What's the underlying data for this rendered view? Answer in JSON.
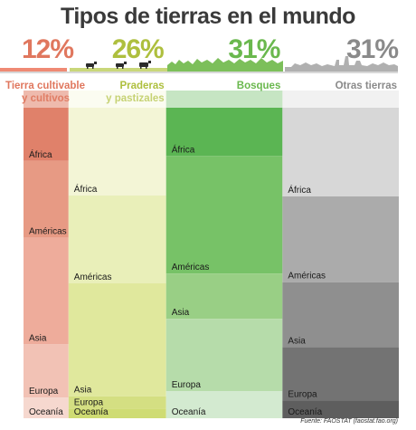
{
  "chart_data": {
    "type": "stacked-bar",
    "title": "Tipos de tierras en el mundo",
    "source": "Fuente: FAOSTAT (faostat.fao.org)",
    "columns": [
      {
        "name": "Tierra cultivable y cultivos",
        "name_lines": [
          "Tierra cultivable",
          "y cultivos"
        ],
        "share_label": "12%",
        "share": 12,
        "label_color": "#e0775e",
        "segments": [
          {
            "region": "África",
            "value": 18,
            "color": "#e0816a"
          },
          {
            "region": "Américas",
            "value": 26,
            "color": "#e79a84"
          },
          {
            "region": "Asia",
            "value": 36,
            "color": "#eeac9b"
          },
          {
            "region": "Europa",
            "value": 18,
            "color": "#f2c2b5"
          },
          {
            "region": "Oceanía",
            "value": 7,
            "color": "#f6d8cf"
          }
        ]
      },
      {
        "name": "Praderas y pastizales",
        "name_lines": [
          "Praderas",
          "y pastizales"
        ],
        "share_label": "26%",
        "share": 26,
        "label_color": "#aebf3e",
        "segments": [
          {
            "region": "África",
            "value": 28,
            "color": "#f3f5d6"
          },
          {
            "region": "Américas",
            "value": 28,
            "color": "#e9efb9"
          },
          {
            "region": "Asia",
            "value": 36,
            "color": "#e0e89d"
          },
          {
            "region": "Europa",
            "value": 4,
            "color": "#d4df82"
          },
          {
            "region": "Oceanía",
            "value": 3,
            "color": "#cfdc73"
          }
        ]
      },
      {
        "name": "Bosques",
        "name_lines": [
          "Bosques"
        ],
        "share_label": "31%",
        "share": 31,
        "label_color": "#6ab84e",
        "segments": [
          {
            "region": "África",
            "value": 16,
            "color": "#5bb553"
          },
          {
            "region": "Américas",
            "value": 39,
            "color": "#77c267"
          },
          {
            "region": "Asia",
            "value": 15,
            "color": "#99cf85"
          },
          {
            "region": "Europa",
            "value": 24,
            "color": "#b6dcaa"
          },
          {
            "region": "Oceanía",
            "value": 9,
            "color": "#d3ead0"
          }
        ]
      },
      {
        "name": "Otras tierras",
        "name_lines": [
          "Otras tierras"
        ],
        "share_label": "31%",
        "share": 31,
        "label_color": "#8a8a8a",
        "segments": [
          {
            "region": "África",
            "value": 30,
            "color": "#d7d7d7"
          },
          {
            "region": "Américas",
            "value": 29,
            "color": "#ababab"
          },
          {
            "region": "Asia",
            "value": 22,
            "color": "#8f8f8f"
          },
          {
            "region": "Europa",
            "value": 18,
            "color": "#737373"
          },
          {
            "region": "Oceanía",
            "value": 6,
            "color": "#5e5e5e"
          }
        ]
      }
    ]
  }
}
